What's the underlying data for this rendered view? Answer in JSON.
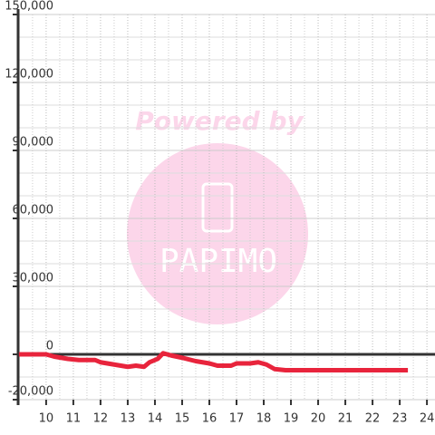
{
  "chart_data": {
    "type": "line",
    "watermark": "Powered by",
    "watermark_logo": "PAPIMO",
    "x": [
      9,
      10,
      10.3,
      10.8,
      11.2,
      11.8,
      12,
      12.5,
      13,
      13.3,
      13.6,
      13.8,
      14.1,
      14.3,
      14.6,
      15,
      15.5,
      16,
      16.3,
      16.8,
      17,
      17.5,
      17.8,
      18.1,
      18.4,
      18.8,
      19.3,
      20,
      21,
      22,
      23.3
    ],
    "series": [
      {
        "color": "#e8243c",
        "values": [
          0,
          0,
          -1000,
          -2000,
          -2500,
          -2500,
          -3500,
          -4500,
          -5500,
          -5000,
          -5500,
          -3500,
          -2000,
          500,
          -500,
          -1500,
          -3000,
          -4000,
          -5000,
          -5000,
          -4000,
          -4000,
          -3500,
          -4500,
          -6500,
          -7000,
          -7000,
          -7000,
          -7000,
          -7000,
          -7000
        ]
      }
    ],
    "xlim": [
      8.97,
      24.33
    ],
    "xticks": [
      10,
      11,
      12,
      13,
      14,
      15,
      16,
      17,
      18,
      19,
      20,
      21,
      22,
      23,
      24
    ],
    "x_minor_ticks": [
      9.5,
      10.5,
      11.5,
      12.5,
      13.5,
      14.5,
      15.5,
      16.5,
      17.5,
      18.5,
      19.5,
      20.5,
      21.5,
      22.5,
      23.5
    ],
    "ylim": [
      -20000,
      150000
    ],
    "yticks": [
      {
        "value": 150000,
        "label": "150,000"
      },
      {
        "value": 120000,
        "label": "120,000"
      },
      {
        "value": 90000,
        "label": "90,000"
      },
      {
        "value": 60000,
        "label": "60,000"
      },
      {
        "value": 30000,
        "label": "30,000"
      },
      0,
      {
        "value": -20000,
        "label": "-20,000"
      }
    ],
    "y_minor_ticks": [
      140000,
      130000,
      110000,
      100000,
      80000,
      70000,
      50000,
      40000,
      20000,
      10000,
      -10000
    ],
    "grid": true
  }
}
